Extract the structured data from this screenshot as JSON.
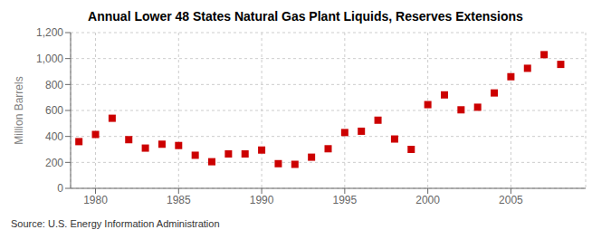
{
  "chart_data": {
    "type": "scatter",
    "title": "Annual Lower 48 States Natural Gas Plant Liquids, Reserves Extensions",
    "ylabel": "Million Barrels",
    "annotations": [
      "Source: U.S. Energy Information Administration"
    ],
    "x": [
      1979,
      1980,
      1981,
      1982,
      1983,
      1984,
      1985,
      1986,
      1987,
      1988,
      1989,
      1990,
      1991,
      1992,
      1993,
      1994,
      1995,
      1996,
      1997,
      1998,
      1999,
      2000,
      2001,
      2002,
      2003,
      2004,
      2005,
      2006,
      2007,
      2008
    ],
    "values": [
      360,
      415,
      540,
      375,
      310,
      340,
      330,
      255,
      205,
      265,
      265,
      295,
      190,
      185,
      240,
      305,
      430,
      440,
      525,
      380,
      300,
      645,
      720,
      605,
      625,
      735,
      860,
      925,
      1030,
      955
    ],
    "color": "#cc0000",
    "marker": "square",
    "xlim": [
      1978.5,
      2009.5
    ],
    "xticks": [
      1980,
      1985,
      1990,
      1995,
      2000,
      2005
    ],
    "ylim": [
      0,
      1200
    ],
    "yticks": [
      0,
      200,
      400,
      600,
      800,
      {
        "value": 1000,
        "label": "1,000"
      },
      {
        "value": 1200,
        "label": "1,200"
      }
    ],
    "grid": true
  }
}
